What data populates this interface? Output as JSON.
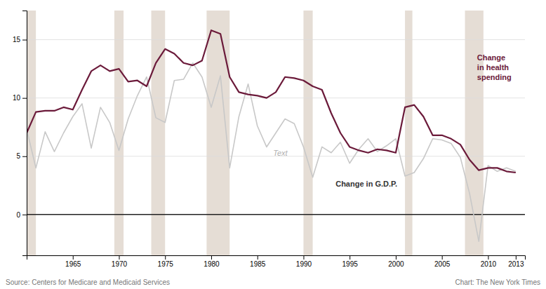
{
  "chart_data": {
    "type": "line",
    "x": [
      1960,
      1961,
      1962,
      1963,
      1964,
      1965,
      1966,
      1967,
      1968,
      1969,
      1970,
      1971,
      1972,
      1973,
      1974,
      1975,
      1976,
      1977,
      1978,
      1979,
      1980,
      1981,
      1982,
      1983,
      1984,
      1985,
      1986,
      1987,
      1988,
      1989,
      1990,
      1991,
      1992,
      1993,
      1994,
      1995,
      1996,
      1997,
      1998,
      1999,
      2000,
      2001,
      2002,
      2003,
      2004,
      2005,
      2006,
      2007,
      2008,
      2009,
      2010,
      2011,
      2012,
      2013
    ],
    "series": [
      {
        "name": "Change in G.D.P.",
        "color": "#c8c8c8",
        "values": [
          7.3,
          4.0,
          7.1,
          5.4,
          7.0,
          8.4,
          9.5,
          5.7,
          9.2,
          7.9,
          5.5,
          8.2,
          10.2,
          11.8,
          8.3,
          7.9,
          11.5,
          11.6,
          13.0,
          11.8,
          9.2,
          11.9,
          4.0,
          8.4,
          11.2,
          7.6,
          5.8,
          7.0,
          8.2,
          7.8,
          5.8,
          3.2,
          5.8,
          5.3,
          6.2,
          4.4,
          5.6,
          6.5,
          5.4,
          5.9,
          6.5,
          3.3,
          3.6,
          4.8,
          6.5,
          6.4,
          6.1,
          4.9,
          1.8,
          -2.3,
          4.2,
          3.7,
          4.0,
          3.7
        ]
      },
      {
        "name": "Change\nin health\nspending",
        "color": "#6b1a3a",
        "values": [
          7.0,
          8.8,
          8.9,
          8.9,
          9.2,
          9.0,
          10.7,
          12.3,
          12.8,
          12.3,
          12.5,
          11.4,
          11.5,
          11.0,
          13.0,
          14.2,
          13.8,
          13.0,
          12.8,
          13.2,
          15.8,
          15.5,
          11.8,
          10.5,
          10.3,
          10.2,
          10.0,
          10.5,
          11.8,
          11.7,
          11.5,
          11.0,
          10.7,
          8.7,
          7.0,
          5.8,
          5.5,
          5.3,
          5.6,
          5.5,
          5.3,
          9.2,
          9.4,
          8.4,
          6.8,
          6.8,
          6.5,
          6.0,
          4.7,
          3.8,
          4.0,
          4.0,
          3.7,
          3.6
        ]
      }
    ],
    "bands": {
      "color": "#e5ddd5",
      "ranges": [
        [
          1960.0,
          1961.0
        ],
        [
          1969.5,
          1970.5
        ],
        [
          1973.5,
          1975.0
        ],
        [
          1979.5,
          1982.0
        ],
        [
          1990.0,
          1991.0
        ],
        [
          2001.0,
          2001.8
        ],
        [
          2007.5,
          2009.5
        ]
      ]
    },
    "xlim": [
      1960,
      2014
    ],
    "xticks": [
      1965,
      1970,
      1975,
      1980,
      1985,
      1990,
      1995,
      2000,
      2005,
      2010,
      2013
    ],
    "ylim": [
      -3.5,
      17.5
    ],
    "yticks": [
      0,
      5,
      10,
      15
    ],
    "grid": true,
    "annotations": [
      "Text",
      "Source: Centers for Medicare and Medicaid Services",
      "Chart: The New York Times"
    ]
  }
}
